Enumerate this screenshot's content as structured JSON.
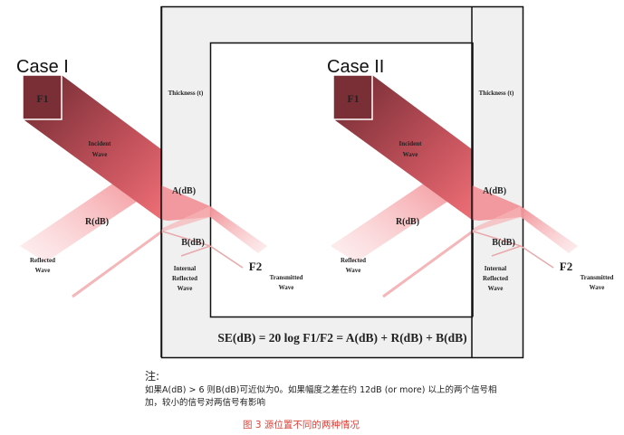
{
  "cases": [
    {
      "title": "Case I",
      "source": "F1",
      "thickness": "Thickness (t)",
      "incident": [
        "Incident",
        "Wave"
      ],
      "absorption": "A(dB)",
      "reflection": "R(dB)",
      "multi_reflection": "B(dB)",
      "reflected": [
        "Reflected",
        "Wave"
      ],
      "internal": [
        "Internal",
        "Reflected",
        "Wave"
      ],
      "receiver": "F2",
      "transmitted": [
        "Transmitted",
        "Wave"
      ]
    },
    {
      "title": "Case II",
      "source": "F1",
      "thickness": "Thickness (t)",
      "incident": [
        "Incident",
        "Wave"
      ],
      "absorption": "A(dB)",
      "reflection": "R(dB)",
      "multi_reflection": "B(dB)",
      "reflected": [
        "Reflected",
        "Wave"
      ],
      "internal": [
        "Internal",
        "Reflected",
        "Wave"
      ],
      "receiver": "F2",
      "transmitted": [
        "Transmitted",
        "Wave"
      ]
    }
  ],
  "formula": "SE(dB) = 20 log F1/F2 = A(dB) + R(dB) + B(dB)",
  "note": {
    "heading": "注:",
    "line1": "如果A(dB) > 6 则B(dB)可近似为0。如果幅度之差在约 12dB (or more) 以上的两个信号相",
    "line2": "加，较小的信号对两信号有影响"
  },
  "caption": "图 3  源位置不同的两种情况",
  "colors": {
    "beam_dark": "#7a2f36",
    "beam_light": "#f08a8f",
    "slab": "#f0f0f0",
    "caption": "#d9423a"
  }
}
